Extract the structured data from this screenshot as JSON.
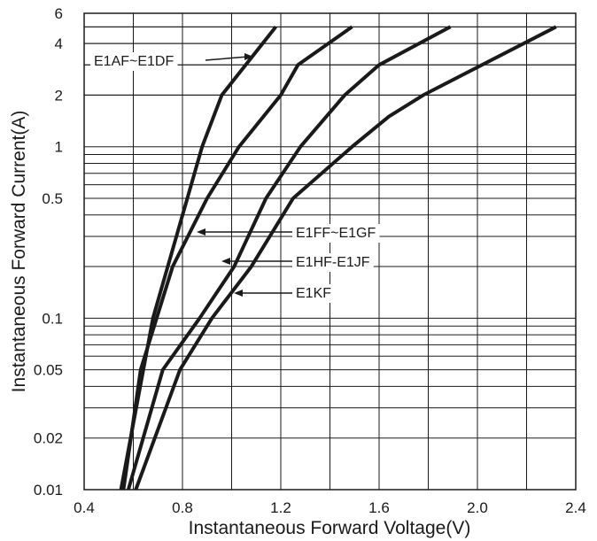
{
  "chart_data": {
    "type": "line",
    "xlabel": "Instantaneous Forward Voltage(V)",
    "ylabel": "Instantaneous Forward Current(A)",
    "xlim": [
      0.4,
      2.4
    ],
    "ylim": [
      0.01,
      6
    ],
    "yscale": "log",
    "grid": true,
    "x_ticks": [
      {
        "value": 0.4,
        "label": "0.4"
      },
      {
        "value": 0.8,
        "label": "0.8"
      },
      {
        "value": 1.2,
        "label": "1.2"
      },
      {
        "value": 1.6,
        "label": "1.6"
      },
      {
        "value": 2.0,
        "label": "2.0"
      },
      {
        "value": 2.4,
        "label": "2.4"
      }
    ],
    "y_ticks": [
      {
        "value": 6,
        "label": "6"
      },
      {
        "value": 4,
        "label": "4"
      },
      {
        "value": 2,
        "label": "2"
      },
      {
        "value": 1,
        "label": "1"
      },
      {
        "value": 0.5,
        "label": "0.5"
      },
      {
        "value": 0.1,
        "label": "0.1"
      },
      {
        "value": 0.05,
        "label": "0.05"
      },
      {
        "value": 0.02,
        "label": "0.02"
      },
      {
        "value": 0.01,
        "label": "0.01"
      }
    ],
    "series": [
      {
        "name": "E1AF~E1DF",
        "x": [
          0.55,
          0.68,
          0.88,
          0.96,
          1.18
        ],
        "y": [
          0.01,
          0.1,
          1,
          2,
          5
        ]
      },
      {
        "name": "E1FF~E1GF",
        "x": [
          0.56,
          0.63,
          0.76,
          0.9,
          1.03,
          1.2,
          1.27,
          1.49
        ],
        "y": [
          0.01,
          0.05,
          0.2,
          0.5,
          1,
          2,
          3,
          5
        ]
      },
      {
        "name": "E1HF-E1JF",
        "x": [
          0.58,
          0.72,
          0.87,
          1.01,
          1.14,
          1.28,
          1.46,
          1.6,
          1.89
        ],
        "y": [
          0.01,
          0.05,
          0.1,
          0.2,
          0.5,
          1,
          2,
          3,
          5
        ]
      },
      {
        "name": "E1KF",
        "x": [
          0.61,
          0.79,
          0.92,
          1.08,
          1.25,
          1.49,
          1.64,
          1.78,
          2.32
        ],
        "y": [
          0.01,
          0.05,
          0.1,
          0.2,
          0.5,
          1,
          1.5,
          2,
          5
        ]
      }
    ],
    "annotations": [
      {
        "text": "E1AF~E1DF",
        "series": 0
      },
      {
        "text": "E1FF~E1GF",
        "series": 1
      },
      {
        "text": "E1HF-E1JF",
        "series": 2
      },
      {
        "text": "E1KF",
        "series": 3
      }
    ]
  }
}
